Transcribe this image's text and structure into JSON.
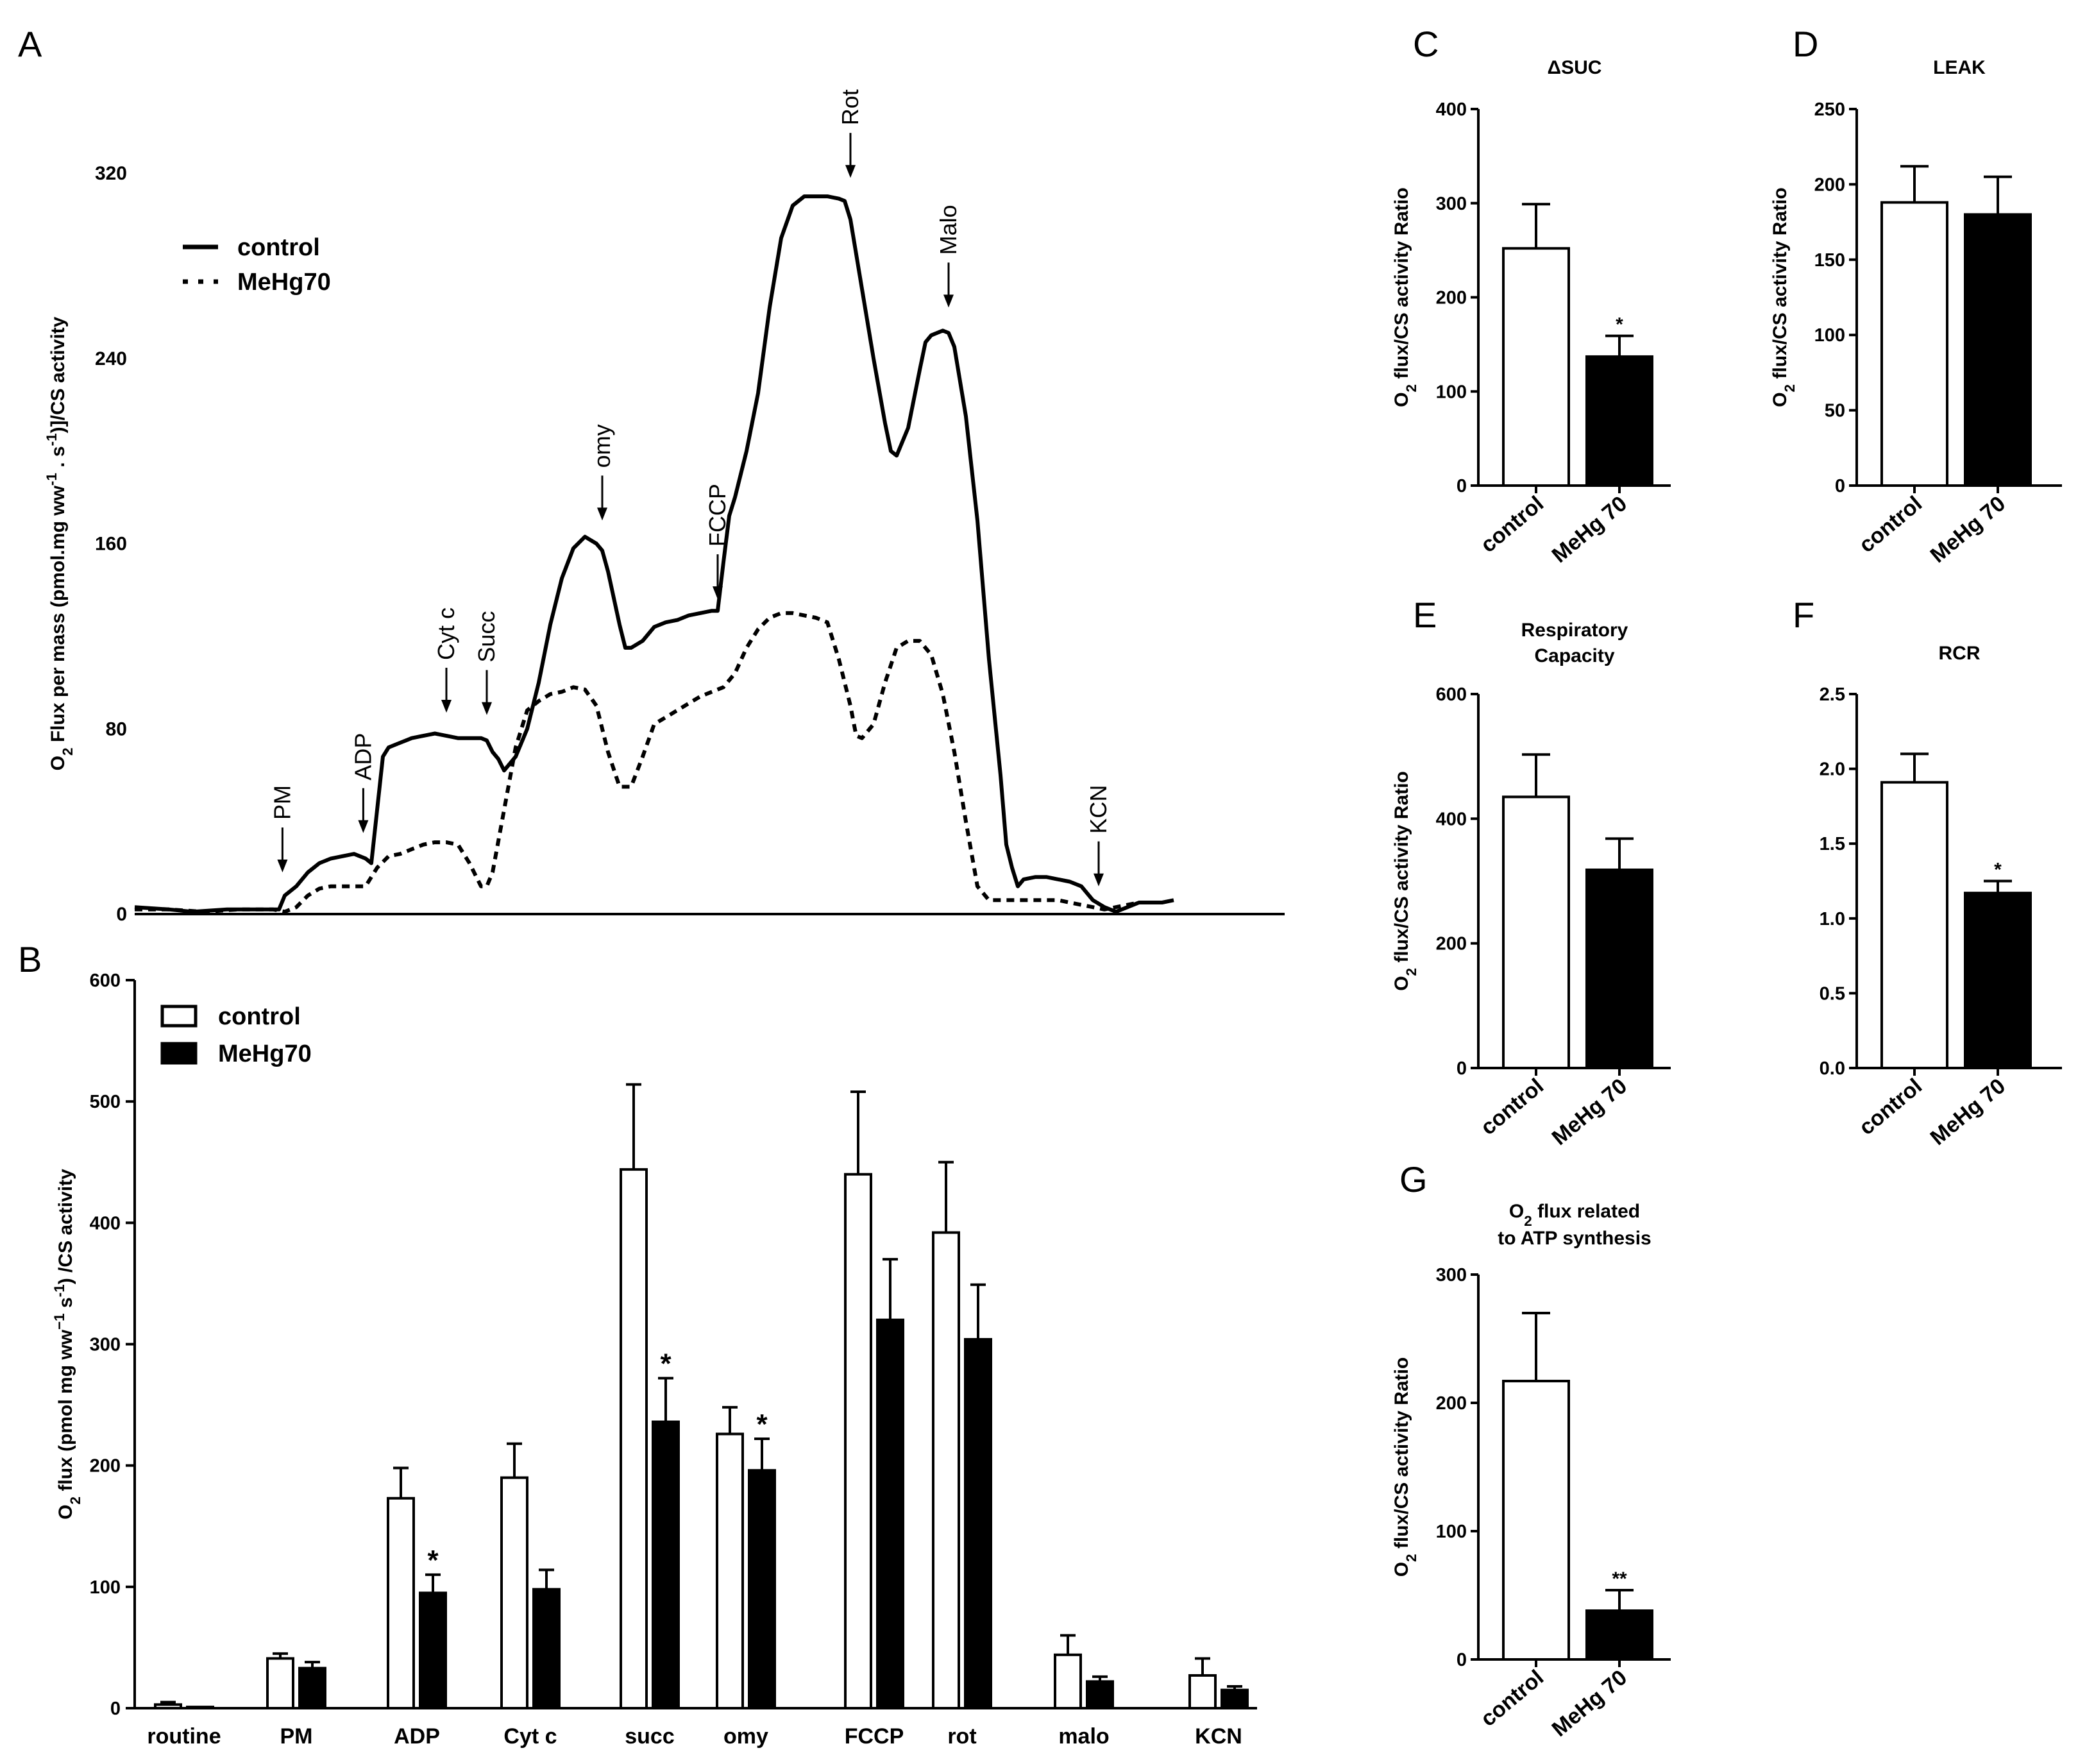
{
  "panel_labels": {
    "A": "A",
    "B": "B",
    "C": "C",
    "D": "D",
    "E": "E",
    "F": "F",
    "G": "G"
  },
  "chart_data": [
    {
      "id": "A",
      "type": "line",
      "ylabel": "O2 Flux per mass (pmol.mg ww-1 . s-1)]/CS activity",
      "ylabel_parts": {
        "main": "O",
        "sub": "2",
        "mid": " Flux per mass (pmol.mg ww",
        "sup1": "-1",
        "mid2": " . s",
        "sup2": "-1",
        "end": ")]/CS activity"
      },
      "ylim": [
        0,
        320
      ],
      "yticks": [
        0,
        80,
        160,
        240,
        320
      ],
      "xlim": [
        0,
        100
      ],
      "legend": [
        {
          "name": "control",
          "style": "solid"
        },
        {
          "name": "MeHg70",
          "style": "dotted"
        }
      ],
      "series": [
        {
          "name": "control",
          "style": "solid",
          "points": [
            [
              0,
              3
            ],
            [
              3,
              2
            ],
            [
              5,
              1
            ],
            [
              8,
              2
            ],
            [
              11,
              2
            ],
            [
              12.5,
              2
            ],
            [
              13,
              8
            ],
            [
              14,
              12
            ],
            [
              15,
              18
            ],
            [
              16,
              22
            ],
            [
              17,
              24
            ],
            [
              18,
              25
            ],
            [
              19,
              26
            ],
            [
              19.5,
              25
            ],
            [
              20,
              24
            ],
            [
              20.5,
              22
            ],
            [
              21,
              45
            ],
            [
              21.5,
              68
            ],
            [
              22,
              72
            ],
            [
              23,
              74
            ],
            [
              24,
              76
            ],
            [
              25,
              77
            ],
            [
              26,
              78
            ],
            [
              27,
              77
            ],
            [
              28,
              76
            ],
            [
              29,
              76
            ],
            [
              30,
              76
            ],
            [
              30.5,
              75
            ],
            [
              31,
              70
            ],
            [
              31.5,
              67
            ],
            [
              32,
              62
            ],
            [
              33,
              68
            ],
            [
              34,
              80
            ],
            [
              35,
              100
            ],
            [
              36,
              125
            ],
            [
              37,
              145
            ],
            [
              38,
              158
            ],
            [
              39,
              163
            ],
            [
              40,
              160
            ],
            [
              40.5,
              157
            ],
            [
              41,
              148
            ],
            [
              42,
              125
            ],
            [
              42.5,
              115
            ],
            [
              43,
              115
            ],
            [
              44,
              118
            ],
            [
              45,
              124
            ],
            [
              46,
              126
            ],
            [
              47,
              127
            ],
            [
              48,
              129
            ],
            [
              49,
              130
            ],
            [
              50,
              131
            ],
            [
              50.5,
              131
            ],
            [
              51,
              152
            ],
            [
              51.5,
              172
            ],
            [
              52,
              180
            ],
            [
              53,
              200
            ],
            [
              54,
              225
            ],
            [
              55,
              262
            ],
            [
              56,
              292
            ],
            [
              57,
              306
            ],
            [
              58,
              310
            ],
            [
              59,
              310
            ],
            [
              60,
              310
            ],
            [
              61,
              309
            ],
            [
              61.5,
              308
            ],
            [
              62,
              300
            ],
            [
              63,
              270
            ],
            [
              64,
              240
            ],
            [
              65,
              212
            ],
            [
              65.5,
              200
            ],
            [
              66,
              198
            ],
            [
              67,
              210
            ],
            [
              68,
              235
            ],
            [
              68.5,
              247
            ],
            [
              69,
              250
            ],
            [
              70,
              252
            ],
            [
              70.5,
              251
            ],
            [
              71,
              245
            ],
            [
              72,
              215
            ],
            [
              73,
              170
            ],
            [
              74,
              110
            ],
            [
              75,
              60
            ],
            [
              75.5,
              30
            ],
            [
              76,
              20
            ],
            [
              76.5,
              12
            ],
            [
              77,
              15
            ],
            [
              78,
              16
            ],
            [
              79,
              16
            ],
            [
              80,
              15
            ],
            [
              81,
              14
            ],
            [
              82,
              12
            ],
            [
              83,
              6
            ],
            [
              84,
              3
            ],
            [
              85,
              1
            ],
            [
              86,
              3
            ],
            [
              87,
              5
            ],
            [
              88,
              5
            ],
            [
              89,
              5
            ],
            [
              90,
              6
            ]
          ]
        },
        {
          "name": "MeHg70",
          "style": "dotted",
          "points": [
            [
              0,
              2
            ],
            [
              3,
              2
            ],
            [
              6,
              1
            ],
            [
              9,
              2
            ],
            [
              12,
              2
            ],
            [
              13,
              1
            ],
            [
              14,
              3
            ],
            [
              15,
              8
            ],
            [
              16,
              11
            ],
            [
              17,
              12
            ],
            [
              18,
              12
            ],
            [
              19,
              12
            ],
            [
              20,
              12
            ],
            [
              21,
              20
            ],
            [
              22,
              25
            ],
            [
              23,
              26
            ],
            [
              24,
              28
            ],
            [
              25,
              30
            ],
            [
              26,
              31
            ],
            [
              27,
              31
            ],
            [
              28,
              30
            ],
            [
              29,
              22
            ],
            [
              30,
              12
            ],
            [
              30.5,
              12
            ],
            [
              31,
              18
            ],
            [
              32,
              45
            ],
            [
              33,
              72
            ],
            [
              34,
              88
            ],
            [
              35,
              92
            ],
            [
              36,
              95
            ],
            [
              37,
              96
            ],
            [
              38,
              98
            ],
            [
              39,
              97
            ],
            [
              40,
              90
            ],
            [
              41,
              70
            ],
            [
              42,
              55
            ],
            [
              43,
              55
            ],
            [
              44,
              68
            ],
            [
              45,
              82
            ],
            [
              46,
              85
            ],
            [
              47,
              88
            ],
            [
              48,
              91
            ],
            [
              49,
              94
            ],
            [
              50,
              96
            ],
            [
              51,
              98
            ],
            [
              52,
              104
            ],
            [
              53,
              115
            ],
            [
              54,
              123
            ],
            [
              55,
              128
            ],
            [
              56,
              130
            ],
            [
              57,
              130
            ],
            [
              58,
              129
            ],
            [
              59,
              128
            ],
            [
              60,
              126
            ],
            [
              61,
              110
            ],
            [
              62,
              90
            ],
            [
              62.5,
              77
            ],
            [
              63,
              76
            ],
            [
              64,
              82
            ],
            [
              65,
              100
            ],
            [
              66,
              115
            ],
            [
              67,
              118
            ],
            [
              68,
              118
            ],
            [
              69,
              112
            ],
            [
              70,
              95
            ],
            [
              71,
              70
            ],
            [
              72,
              40
            ],
            [
              73,
              12
            ],
            [
              74,
              6
            ],
            [
              75,
              6
            ],
            [
              76,
              6
            ],
            [
              77,
              6
            ],
            [
              78,
              6
            ],
            [
              79,
              6
            ],
            [
              80,
              6
            ],
            [
              81,
              5
            ],
            [
              82,
              4
            ],
            [
              83,
              3
            ],
            [
              84,
              2
            ],
            [
              85,
              3
            ],
            [
              86,
              4
            ],
            [
              87,
              5
            ],
            [
              88,
              5
            ]
          ]
        }
      ],
      "annotations": [
        {
          "label": "PM",
          "x": 12.8,
          "y": 18
        },
        {
          "label": "ADP",
          "x": 19.8,
          "y": 35
        },
        {
          "label": "Cyt c",
          "x": 27,
          "y": 87
        },
        {
          "label": "Succ",
          "x": 30.5,
          "y": 86
        },
        {
          "label": "omy",
          "x": 40.5,
          "y": 170
        },
        {
          "label": "FCCP",
          "x": 50.5,
          "y": 136
        },
        {
          "label": "Rot",
          "x": 62,
          "y": 318
        },
        {
          "label": "Malo",
          "x": 70.5,
          "y": 262
        },
        {
          "label": "KCN",
          "x": 83.5,
          "y": 12
        }
      ]
    },
    {
      "id": "B",
      "type": "bar",
      "ylabel": "O2 flux (pmol mg ww-1 s-1) /CS activity",
      "ylabel_parts": {
        "main": "O",
        "sub": "2",
        "mid": " flux (pmol mg ww",
        "sup1": "−1",
        "mid2": "  s",
        "sup2": "-1",
        "end": ") /CS activity"
      },
      "ylim": [
        0,
        600
      ],
      "yticks": [
        0,
        100,
        200,
        300,
        400,
        500,
        600
      ],
      "categories": [
        "routine",
        "PM",
        "ADP",
        "Cyt c",
        "succ",
        "omy",
        "FCCP",
        "rot",
        "malo",
        "KCN"
      ],
      "legend": [
        "control",
        "MeHg70"
      ],
      "series": [
        {
          "name": "control",
          "values": [
            3,
            41,
            173,
            190,
            444,
            226,
            440,
            392,
            44,
            27
          ],
          "errors": [
            2,
            4,
            25,
            28,
            70,
            22,
            68,
            58,
            16,
            14
          ],
          "sig": [
            "",
            "",
            "",
            "",
            "",
            "",
            "",
            "",
            "",
            ""
          ]
        },
        {
          "name": "MeHg70",
          "values": [
            1,
            33,
            95,
            98,
            236,
            196,
            320,
            304,
            22,
            15
          ],
          "errors": [
            0,
            5,
            15,
            16,
            36,
            26,
            50,
            45,
            4,
            3
          ],
          "sig": [
            "",
            "",
            "*",
            "",
            "*",
            "*",
            "",
            "",
            "",
            ""
          ]
        }
      ]
    },
    {
      "id": "C",
      "type": "bar",
      "title": "ΔSUC",
      "ylabel_parts": {
        "main": "O",
        "sub": "2",
        "end": " flux/CS activity Ratio"
      },
      "ylim": [
        0,
        400
      ],
      "yticks": [
        0,
        100,
        200,
        300,
        400
      ],
      "categories": [
        "control",
        "MeHg 70"
      ],
      "values": [
        252,
        137
      ],
      "errors": [
        47,
        22
      ],
      "sig": [
        "",
        "*"
      ]
    },
    {
      "id": "D",
      "type": "bar",
      "title": "LEAK",
      "ylabel_parts": {
        "main": "O",
        "sub": "2",
        "end": " flux/CS activity Ratio"
      },
      "ylim": [
        0,
        250
      ],
      "yticks": [
        0,
        50,
        100,
        150,
        200,
        250
      ],
      "categories": [
        "control",
        "MeHg 70"
      ],
      "values": [
        188,
        180
      ],
      "errors": [
        24,
        25
      ],
      "sig": [
        "",
        ""
      ]
    },
    {
      "id": "E",
      "type": "bar",
      "title_lines": [
        "Respiratory",
        "Capacity"
      ],
      "ylabel_parts": {
        "main": "O",
        "sub": "2",
        "end": " flux/CS activity Ratio"
      },
      "ylim": [
        0,
        600
      ],
      "yticks": [
        0,
        200,
        400,
        600
      ],
      "categories": [
        "control",
        "MeHg 70"
      ],
      "values": [
        435,
        318
      ],
      "errors": [
        68,
        50
      ],
      "sig": [
        "",
        ""
      ]
    },
    {
      "id": "F",
      "type": "bar",
      "title": "RCR",
      "ylabel": "",
      "ylim": [
        0,
        2.5
      ],
      "yticks": [
        0.0,
        0.5,
        1.0,
        1.5,
        2.0,
        2.5
      ],
      "ytick_labels": [
        "0.0",
        "0.5",
        "1.0",
        "1.5",
        "2.0",
        "2.5"
      ],
      "categories": [
        "control",
        "MeHg 70"
      ],
      "values": [
        1.91,
        1.17
      ],
      "errors": [
        0.19,
        0.08
      ],
      "sig": [
        "",
        "*"
      ]
    },
    {
      "id": "G",
      "type": "bar",
      "title_parts": {
        "l1a": "O",
        "l1sub": "2",
        "l1b": " flux related",
        "l2": "to ATP synthesis"
      },
      "ylabel_parts": {
        "main": "O",
        "sub": "2",
        "end": " flux/CS activity Ratio"
      },
      "ylim": [
        0,
        300
      ],
      "yticks": [
        0,
        100,
        200,
        300
      ],
      "categories": [
        "control",
        "MeHg 70"
      ],
      "values": [
        217,
        38
      ],
      "errors": [
        53,
        16
      ],
      "sig": [
        "",
        "**"
      ]
    }
  ]
}
